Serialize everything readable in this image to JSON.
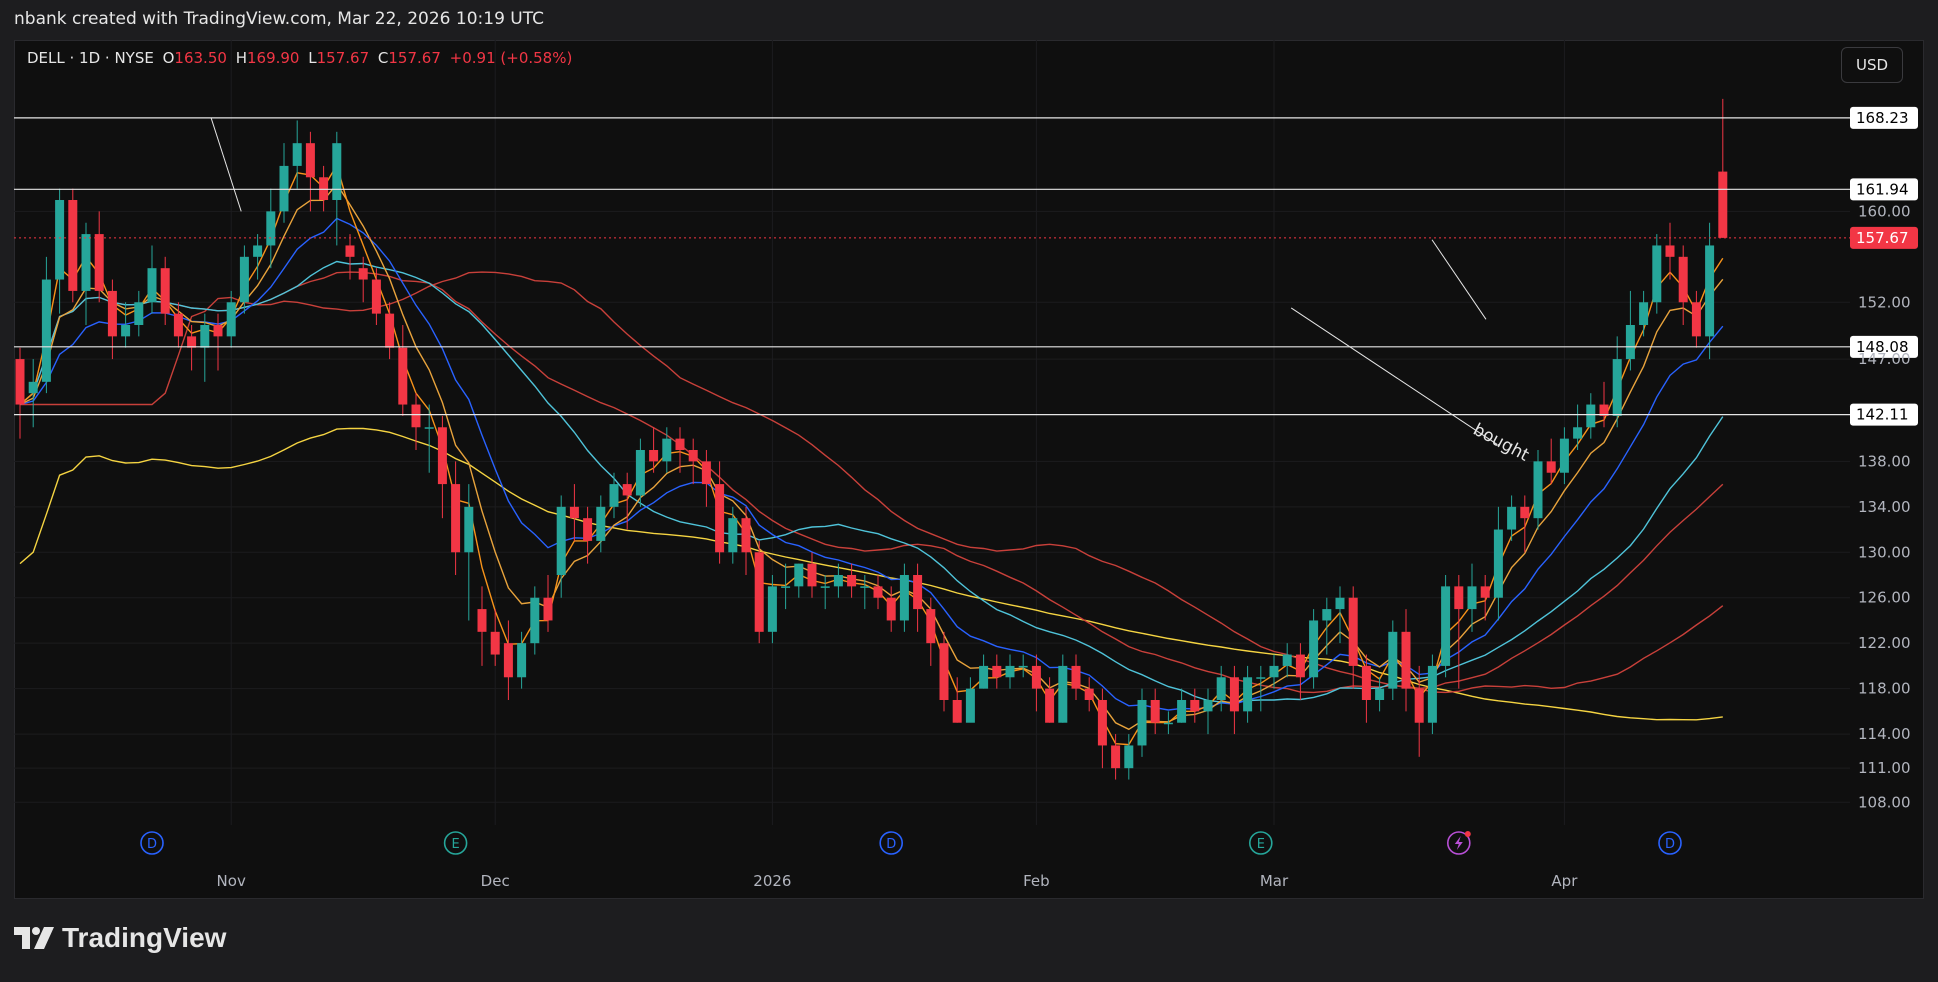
{
  "header": {
    "credit": "nbank created with TradingView.com, Mar 22, 2026 10:19 UTC"
  },
  "legend": {
    "symbol": "DELL · 1D · NYSE",
    "open_label": "O",
    "open": "163.50",
    "high_label": "H",
    "high": "169.90",
    "low_label": "L",
    "low": "157.67",
    "close_label": "C",
    "close": "157.67",
    "change": "+0.91 (+0.58%)"
  },
  "currency_button": "USD",
  "footer": {
    "brand": "TradingView"
  },
  "colors": {
    "bg": "#0f0f0f",
    "up": "#26a69a",
    "down": "#f23645",
    "ema_orange": "#f7931a",
    "ema_gold": "#e8a33c",
    "ema_blue": "#2962ff",
    "ma_cyan": "#4fc3d9",
    "ma_red": "#c8403a",
    "ma_yellow": "#f5d442"
  },
  "chart_data": {
    "type": "candlestick",
    "symbol": "DELL",
    "interval": "1D",
    "exchange": "NYSE",
    "ylim": [
      106,
      172
    ],
    "y_ticks": [
      108,
      111,
      114,
      118,
      122,
      126,
      130,
      134,
      138,
      147,
      152,
      160
    ],
    "x_ticks": [
      {
        "label": "Nov",
        "idx": 16
      },
      {
        "label": "Dec",
        "idx": 36
      },
      {
        "label": "2026",
        "idx": 57
      },
      {
        "label": "Feb",
        "idx": 77
      },
      {
        "label": "Mar",
        "idx": 95
      },
      {
        "label": "Apr",
        "idx": 117
      }
    ],
    "candles": [
      [
        147,
        143,
        148,
        140
      ],
      [
        144,
        145,
        147,
        141
      ],
      [
        145,
        154,
        156,
        144
      ],
      [
        154,
        161,
        162,
        151
      ],
      [
        161,
        153,
        162,
        152
      ],
      [
        153,
        158,
        159,
        150
      ],
      [
        158,
        153,
        160,
        152
      ],
      [
        153,
        149,
        154,
        147
      ],
      [
        149,
        150,
        152,
        148
      ],
      [
        150,
        152,
        153,
        149
      ],
      [
        152,
        155,
        157,
        151
      ],
      [
        155,
        151,
        156,
        150
      ],
      [
        151,
        149,
        152,
        148
      ],
      [
        149,
        148,
        150,
        146
      ],
      [
        148,
        150,
        151,
        145
      ],
      [
        150,
        149,
        151,
        146
      ],
      [
        149,
        152,
        153,
        148
      ],
      [
        152,
        156,
        157,
        151
      ],
      [
        156,
        157,
        158,
        154
      ],
      [
        157,
        160,
        162,
        155
      ],
      [
        160,
        164,
        166,
        159
      ],
      [
        164,
        166,
        168,
        162
      ],
      [
        166,
        163,
        167,
        160
      ],
      [
        163,
        161,
        164,
        160
      ],
      [
        161,
        166,
        167,
        157
      ],
      [
        157,
        156,
        158,
        154
      ],
      [
        155,
        154,
        156,
        152
      ],
      [
        154,
        151,
        155,
        150
      ],
      [
        151,
        148,
        152,
        147
      ],
      [
        148,
        143,
        150,
        142
      ],
      [
        143,
        141,
        144,
        139
      ],
      [
        141,
        141,
        143,
        137
      ],
      [
        141,
        136,
        142,
        133
      ],
      [
        136,
        130,
        138,
        128
      ],
      [
        130,
        134,
        136,
        124
      ],
      [
        125,
        123,
        127,
        120
      ],
      [
        123,
        121,
        125,
        120
      ],
      [
        122,
        119,
        124,
        117
      ],
      [
        119,
        122,
        123,
        118
      ],
      [
        122,
        126,
        127,
        121
      ],
      [
        126,
        124,
        128,
        123
      ],
      [
        128,
        134,
        135,
        126
      ],
      [
        134,
        133,
        136,
        131
      ],
      [
        133,
        131,
        134,
        129
      ],
      [
        131,
        134,
        135,
        130
      ],
      [
        134,
        136,
        137,
        133
      ],
      [
        136,
        135,
        137,
        132
      ],
      [
        135,
        139,
        140,
        134
      ],
      [
        139,
        138,
        141,
        137
      ],
      [
        138,
        140,
        141,
        137
      ],
      [
        140,
        139,
        141,
        137
      ],
      [
        139,
        138,
        140,
        136
      ],
      [
        138,
        136,
        139,
        134
      ],
      [
        136,
        130,
        138,
        129
      ],
      [
        130,
        133,
        134,
        129
      ],
      [
        133,
        130,
        134,
        128
      ],
      [
        130,
        123,
        131,
        122
      ],
      [
        123,
        127,
        128,
        122
      ],
      [
        127,
        127,
        129,
        125
      ],
      [
        127,
        129,
        129,
        126
      ],
      [
        129,
        127,
        130,
        126
      ],
      [
        127,
        127,
        128,
        125
      ],
      [
        127,
        128,
        129,
        126
      ],
      [
        128,
        127,
        129,
        126
      ],
      [
        127,
        127,
        128,
        125
      ],
      [
        127,
        126,
        128,
        125
      ],
      [
        126,
        124,
        127,
        123
      ],
      [
        124,
        128,
        129,
        123
      ],
      [
        128,
        125,
        129,
        123
      ],
      [
        125,
        122,
        126,
        120
      ],
      [
        122,
        117,
        123,
        116
      ],
      [
        117,
        115,
        119,
        115
      ],
      [
        115,
        118,
        119,
        116
      ],
      [
        118,
        120,
        121,
        118
      ],
      [
        120,
        119,
        121,
        118
      ],
      [
        119,
        120,
        121,
        118
      ],
      [
        120,
        120,
        121,
        119
      ],
      [
        120,
        118,
        121,
        116
      ],
      [
        118,
        115,
        119,
        115
      ],
      [
        115,
        120,
        121,
        115
      ],
      [
        120,
        118,
        121,
        117
      ],
      [
        118,
        117,
        119,
        116
      ],
      [
        117,
        113,
        118,
        111
      ],
      [
        113,
        111,
        114,
        110
      ],
      [
        111,
        113,
        114,
        110
      ],
      [
        113,
        117,
        118,
        112
      ],
      [
        117,
        115,
        118,
        114
      ],
      [
        115,
        115,
        116,
        114
      ],
      [
        115,
        117,
        118,
        115
      ],
      [
        117,
        116,
        118,
        115
      ],
      [
        116,
        117,
        118,
        114
      ],
      [
        117,
        119,
        120,
        116
      ],
      [
        119,
        116,
        120,
        114
      ],
      [
        116,
        119,
        120,
        115
      ],
      [
        119,
        119,
        120,
        116
      ],
      [
        119,
        120,
        121,
        118
      ],
      [
        120,
        121,
        122,
        119
      ],
      [
        121,
        119,
        122,
        117
      ],
      [
        119,
        124,
        125,
        118
      ],
      [
        124,
        125,
        126,
        121
      ],
      [
        125,
        126,
        127,
        122
      ],
      [
        126,
        120,
        127,
        118
      ],
      [
        120,
        117,
        121,
        115
      ],
      [
        117,
        118,
        119,
        116
      ],
      [
        118,
        123,
        124,
        117
      ],
      [
        123,
        118,
        125,
        116
      ],
      [
        118,
        115,
        120,
        112
      ],
      [
        115,
        120,
        121,
        114
      ],
      [
        120,
        127,
        128,
        119
      ],
      [
        127,
        125,
        128,
        118
      ],
      [
        125,
        127,
        129,
        123
      ],
      [
        127,
        126,
        128,
        124
      ],
      [
        126,
        132,
        134,
        124
      ],
      [
        132,
        134,
        135,
        131
      ],
      [
        134,
        133,
        135,
        130
      ],
      [
        133,
        138,
        139,
        132
      ],
      [
        138,
        137,
        140,
        136
      ],
      [
        137,
        140,
        141,
        136
      ],
      [
        140,
        141,
        143,
        139
      ],
      [
        141,
        143,
        144,
        140
      ],
      [
        143,
        142,
        145,
        141
      ],
      [
        142,
        147,
        149,
        141
      ],
      [
        147,
        150,
        153,
        146
      ],
      [
        150,
        152,
        153,
        149
      ],
      [
        152,
        157,
        158,
        151
      ],
      [
        157,
        156,
        159,
        154
      ],
      [
        156,
        152,
        157,
        150
      ],
      [
        152,
        149,
        153,
        148
      ],
      [
        149,
        157,
        159,
        147
      ],
      [
        163.5,
        157.67,
        169.9,
        157.67
      ]
    ],
    "horizontal_levels": [
      168.23,
      161.94,
      148.08,
      142.11
    ],
    "last_price": 157.67,
    "annotations": [
      "bought"
    ],
    "event_markers": [
      {
        "type": "D",
        "idx": 10
      },
      {
        "type": "E",
        "idx": 33
      },
      {
        "type": "D",
        "idx": 66
      },
      {
        "type": "E",
        "idx": 94
      },
      {
        "type": "flash",
        "idx": 109
      },
      {
        "type": "D",
        "idx": 125
      }
    ]
  }
}
